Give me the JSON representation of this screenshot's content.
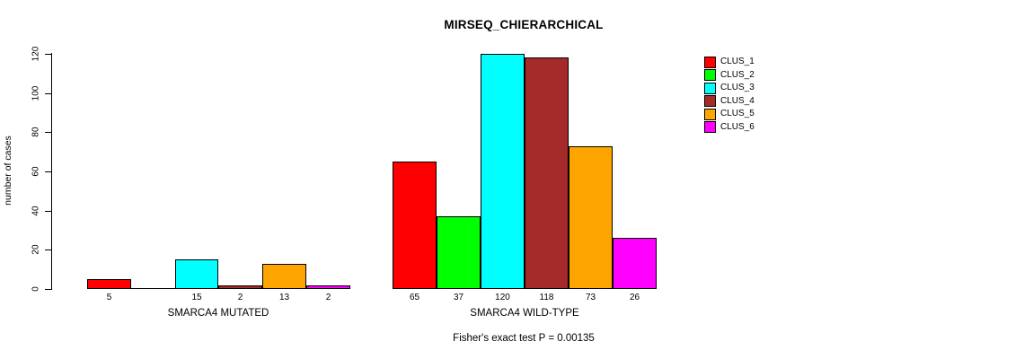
{
  "chart_data": {
    "type": "bar",
    "title": "MIRSEQ_CHIERARCHICAL",
    "ylabel": "number of cases",
    "ylim": [
      0,
      120
    ],
    "yticks": [
      0,
      20,
      40,
      60,
      80,
      100,
      120
    ],
    "grid": false,
    "series_colors": [
      "#FF0000",
      "#00FF00",
      "#00FFFF",
      "#A52A2A",
      "#FFA500",
      "#FF00FF"
    ],
    "legend": {
      "position": "right",
      "entries": [
        {
          "label": "CLUS_1",
          "color": "#FF0000"
        },
        {
          "label": "CLUS_2",
          "color": "#00FF00"
        },
        {
          "label": "CLUS_3",
          "color": "#00FFFF"
        },
        {
          "label": "CLUS_4",
          "color": "#A52A2A"
        },
        {
          "label": "CLUS_5",
          "color": "#FFA500"
        },
        {
          "label": "CLUS_6",
          "color": "#FF00FF"
        }
      ]
    },
    "groups": [
      {
        "label": "SMARCA4 MUTATED",
        "values": [
          5,
          0,
          15,
          2,
          13,
          2
        ],
        "bar_labels": [
          "5",
          "",
          "15",
          "2",
          "13",
          "2"
        ]
      },
      {
        "label": "SMARCA4 WILD-TYPE",
        "values": [
          65,
          37,
          120,
          118,
          73,
          26
        ],
        "bar_labels": [
          "65",
          "37",
          "120",
          "118",
          "73",
          "26"
        ]
      }
    ],
    "annotation": "Fisher's exact test P = 0.00135"
  }
}
